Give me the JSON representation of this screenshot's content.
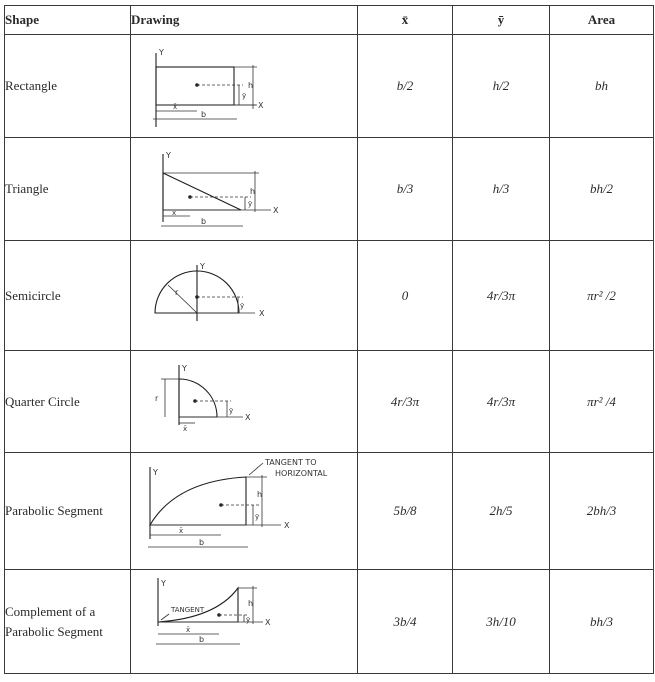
{
  "table": {
    "headers": {
      "shape": "Shape",
      "drawing": "Drawing",
      "xbar": "x̄",
      "ybar": "ȳ",
      "area": "Area"
    },
    "rows": [
      {
        "shape": "Rectangle",
        "xbar": "b/2",
        "ybar": "h/2",
        "area": "bh",
        "sketch_labels": {
          "y": "Y",
          "x": "X",
          "b": "b",
          "h": "h",
          "xbar": "x̄",
          "ybar": "ȳ"
        }
      },
      {
        "shape": "Triangle",
        "xbar": "b/3",
        "ybar": "h/3",
        "area": "bh/2",
        "sketch_labels": {
          "y": "Y",
          "x": "X",
          "b": "b",
          "h": "h",
          "xbar": "x̄",
          "ybar": "ȳ"
        }
      },
      {
        "shape": "Semicircle",
        "xbar": "0",
        "ybar": "4r/3π",
        "area": "πr² /2",
        "sketch_labels": {
          "y": "Y",
          "x": "X",
          "r": "r",
          "ybar": "ȳ"
        }
      },
      {
        "shape": "Quarter Circle",
        "xbar": "4r/3π",
        "ybar": "4r/3π",
        "area": "πr² /4",
        "sketch_labels": {
          "y": "Y",
          "x": "X",
          "r": "r",
          "xbar": "x̄",
          "ybar": "ȳ"
        }
      },
      {
        "shape": "Parabolic Segment",
        "xbar": "5b/8",
        "ybar": "2h/5",
        "area": "2bh/3",
        "sketch_labels": {
          "y": "Y",
          "x": "X",
          "b": "b",
          "h": "h",
          "xbar": "x̄",
          "ybar": "ȳ",
          "note": "TANGENT TO",
          "note2": "HORIZONTAL"
        }
      },
      {
        "shape_line1": "Complement of a",
        "shape_line2": "Parabolic Segment",
        "xbar": "3b/4",
        "ybar": "3h/10",
        "area": "bh/3",
        "sketch_labels": {
          "y": "Y",
          "x": "X",
          "b": "b",
          "h": "h",
          "xbar": "x̄",
          "ybar": "ȳ",
          "note": "TANGENT"
        }
      }
    ]
  }
}
